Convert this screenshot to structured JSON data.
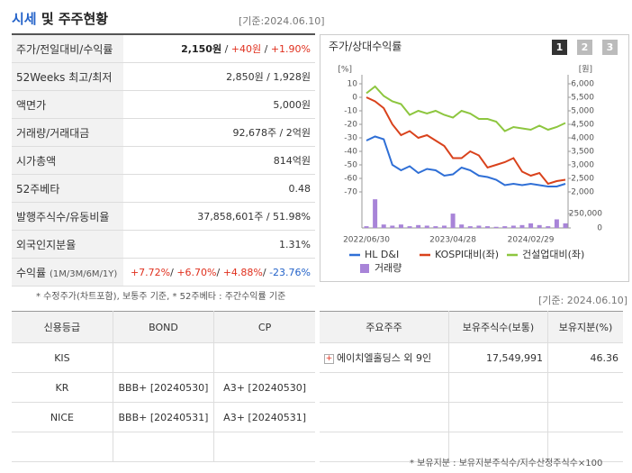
{
  "header": {
    "title_highlight": "시세",
    "title_rest": " 및 주주현황",
    "date": "[기준:2024.06.10]"
  },
  "quote_table": [
    {
      "label": "주가/전일대비/수익률",
      "parts": [
        {
          "text": "2,150원",
          "tone": "bold"
        },
        {
          "text": " / "
        },
        {
          "text": "+40원",
          "tone": "up"
        },
        {
          "text": " / "
        },
        {
          "text": "+1.90%",
          "tone": "up"
        }
      ]
    },
    {
      "label": "52Weeks 최고/최저",
      "parts": [
        {
          "text": "2,850원 / 1,928원"
        }
      ]
    },
    {
      "label": "액면가",
      "parts": [
        {
          "text": "5,000원"
        }
      ]
    },
    {
      "label": "거래량/거래대금",
      "parts": [
        {
          "text": "92,678주 / 2억원"
        }
      ]
    },
    {
      "label": "시가총액",
      "parts": [
        {
          "text": "814억원"
        }
      ]
    },
    {
      "label": "52주베타",
      "parts": [
        {
          "text": "0.48"
        }
      ]
    },
    {
      "label": "발행주식수/유동비율",
      "parts": [
        {
          "text": "37,858,601주 / 51.98%"
        }
      ]
    },
    {
      "label": "외국인지분율",
      "parts": [
        {
          "text": "1.31%"
        }
      ]
    },
    {
      "label": "수익률",
      "label_note": "(1M/3M/6M/1Y)",
      "parts": [
        {
          "text": "+7.72%",
          "tone": "up"
        },
        {
          "text": "/ "
        },
        {
          "text": "+6.70%",
          "tone": "up"
        },
        {
          "text": "/ "
        },
        {
          "text": "+4.88%",
          "tone": "up"
        },
        {
          "text": "/ "
        },
        {
          "text": "-23.76%",
          "tone": "down"
        }
      ]
    }
  ],
  "quote_note": "* 수정주가(차트포함), 보통주 기준, * 52주베타 : 주간수익률 기준",
  "chart_data": {
    "type": "line",
    "title": "주가/상대수익률",
    "buttons": [
      "1",
      "2",
      "3"
    ],
    "y_unit": "[%]",
    "y2_unit": "[원]",
    "categories": [
      "2022/06/30",
      null,
      null,
      null,
      null,
      null,
      null,
      null,
      null,
      null,
      "2023/04/28",
      null,
      null,
      null,
      null,
      null,
      null,
      null,
      null,
      "2024/02/29",
      null,
      null,
      null,
      null
    ],
    "ylim": [
      10,
      -70
    ],
    "yticks": [
      10,
      0,
      -10,
      -20,
      -30,
      -40,
      -50,
      -60,
      -70
    ],
    "y2lim": [
      6000,
      2000
    ],
    "y2ticks": [
      {
        "value": 6000,
        "label": "6,000"
      },
      {
        "value": 5500,
        "label": "5,500"
      },
      {
        "value": 5000,
        "label": "5,000"
      },
      {
        "value": 4500,
        "label": "4,500"
      },
      {
        "value": 4000,
        "label": "4,000"
      },
      {
        "value": 3500,
        "label": "3,500"
      },
      {
        "value": 3000,
        "label": "3,000"
      },
      {
        "value": 2500,
        "label": "2,500"
      },
      {
        "value": 2000,
        "label": "2,000"
      }
    ],
    "vlim": [
      0,
      550000
    ],
    "vticks": [
      {
        "value": 250000,
        "label": "250,000"
      },
      0
    ],
    "series": [
      {
        "name": "HL D&I",
        "color": "#2f6fd6",
        "axis": "y2",
        "values": [
          3900,
          4050,
          3950,
          3000,
          2800,
          2950,
          2700,
          2850,
          2800,
          2600,
          2650,
          2900,
          2800,
          2600,
          2550,
          2450,
          2250,
          2300,
          2250,
          2300,
          2250,
          2200,
          2200,
          2300
        ]
      },
      {
        "name": "KOSPI대비(좌)",
        "color": "#d9421c",
        "axis": "y",
        "values": [
          0,
          -3,
          -8,
          -20,
          -28,
          -25,
          -30,
          -28,
          -32,
          -36,
          -45,
          -45,
          -40,
          -43,
          -52,
          -50,
          -48,
          -45,
          -55,
          -58,
          -56,
          -64,
          -62,
          -61
        ]
      },
      {
        "name": "건설업대비(좌)",
        "color": "#8dc63f",
        "axis": "y",
        "values": [
          3,
          8,
          1,
          -3,
          -5,
          -13,
          -10,
          -12,
          -10,
          -13,
          -15,
          -10,
          -12,
          -16,
          -16,
          -18,
          -25,
          -22,
          -23,
          -24,
          -21,
          -24,
          -22,
          -19
        ]
      },
      {
        "name": "거래량",
        "color": "#a884d8",
        "axis": "v",
        "type": "bar",
        "values": [
          30000,
          500000,
          60000,
          40000,
          60000,
          30000,
          50000,
          40000,
          30000,
          40000,
          250000,
          60000,
          30000,
          40000,
          30000,
          20000,
          30000,
          40000,
          50000,
          80000,
          50000,
          30000,
          150000,
          80000
        ]
      }
    ]
  },
  "date2": "[기준: 2024.06.10]",
  "credit_table": {
    "headers": [
      "신용등급",
      "BOND",
      "CP"
    ],
    "rows": [
      {
        "agency": "KIS"
      },
      {
        "agency": "KR",
        "bond": "BBB+ [20240530]",
        "cp": "A3+ [20240530]"
      },
      {
        "agency": "NICE",
        "bond": "BBB+ [20240531]",
        "cp": "A3+ [20240531]"
      }
    ]
  },
  "holders_table": {
    "headers": [
      "주요주주",
      "보유주식수(보통)",
      "보유지분(%)"
    ],
    "rows": [
      {
        "name": "에이치엘홀딩스 외 9인",
        "shares": "17,549,991",
        "ratio": "46.36"
      }
    ]
  },
  "holders_note": "* 보유지분 : 보유지분주식수/지수산정주식수×100"
}
